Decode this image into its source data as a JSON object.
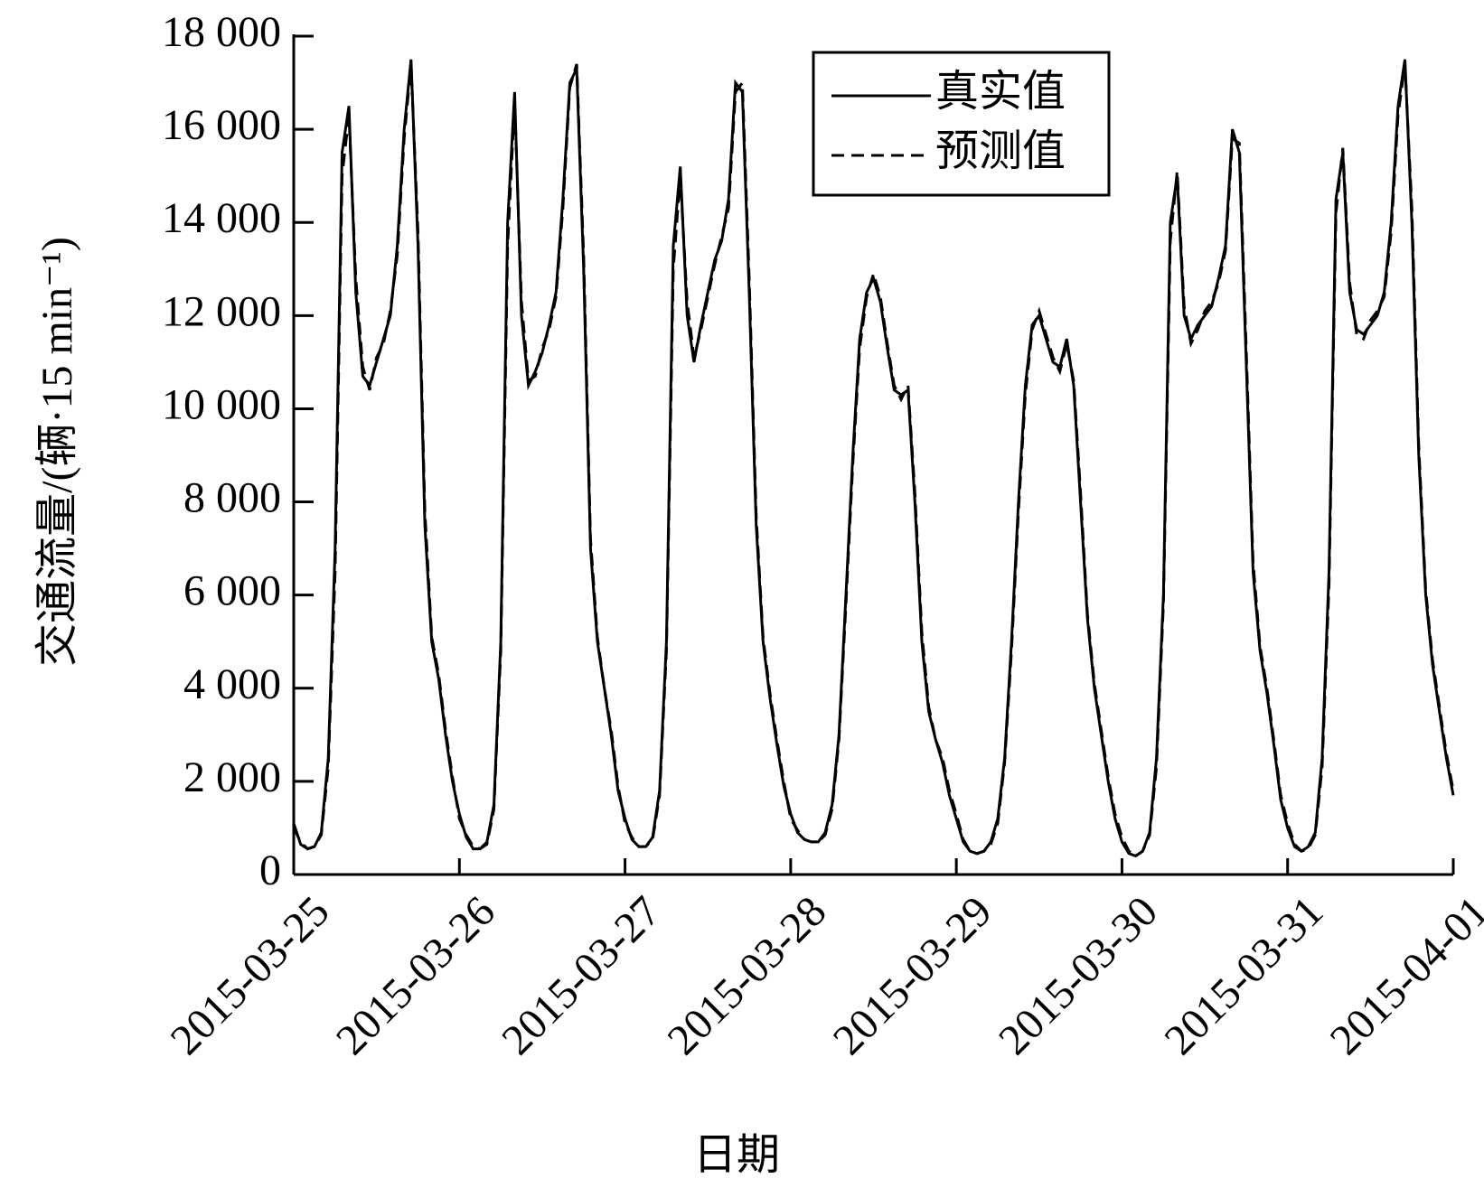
{
  "chart_data": {
    "type": "line",
    "xlabel": "日期",
    "ylabel": "交通流量/(辆·15 min⁻¹)",
    "categories": [
      "2015-03-25",
      null,
      null,
      null,
      null,
      null,
      null,
      null,
      null,
      null,
      null,
      null,
      null,
      null,
      null,
      null,
      null,
      null,
      null,
      null,
      null,
      null,
      null,
      null,
      "2015-03-26",
      null,
      null,
      null,
      null,
      null,
      null,
      null,
      null,
      null,
      null,
      null,
      null,
      null,
      null,
      null,
      null,
      null,
      null,
      null,
      null,
      null,
      null,
      null,
      "2015-03-27",
      null,
      null,
      null,
      null,
      null,
      null,
      null,
      null,
      null,
      null,
      null,
      null,
      null,
      null,
      null,
      null,
      null,
      null,
      null,
      null,
      null,
      null,
      null,
      "2015-03-28",
      null,
      null,
      null,
      null,
      null,
      null,
      null,
      null,
      null,
      null,
      null,
      null,
      null,
      null,
      null,
      null,
      null,
      null,
      null,
      null,
      null,
      null,
      null,
      "2015-03-29",
      null,
      null,
      null,
      null,
      null,
      null,
      null,
      null,
      null,
      null,
      null,
      null,
      null,
      null,
      null,
      null,
      null,
      null,
      null,
      null,
      null,
      null,
      null,
      "2015-03-30",
      null,
      null,
      null,
      null,
      null,
      null,
      null,
      null,
      null,
      null,
      null,
      null,
      null,
      null,
      null,
      null,
      null,
      null,
      null,
      null,
      null,
      null,
      null,
      "2015-03-31",
      null,
      null,
      null,
      null,
      null,
      null,
      null,
      null,
      null,
      null,
      null,
      null,
      null,
      null,
      null,
      null,
      null,
      null,
      null,
      null,
      null,
      null,
      null,
      "2015-04-01"
    ],
    "series": [
      {
        "name": "真实值",
        "color": "#000000",
        "linestyle": "solid",
        "values": [
          1100,
          650,
          550,
          600,
          900,
          2500,
          7000,
          15500,
          16500,
          12500,
          10700,
          10500,
          11000,
          11500,
          12000,
          13500,
          16000,
          17500,
          13500,
          7500,
          5000,
          4200,
          3000,
          2000,
          1300,
          800,
          550,
          550,
          700,
          1500,
          5000,
          14000,
          16800,
          12000,
          10500,
          10800,
          11200,
          11800,
          12500,
          14500,
          17000,
          17300,
          13000,
          7000,
          5000,
          4000,
          3000,
          1800,
          1200,
          750,
          600,
          600,
          800,
          1800,
          5000,
          13500,
          15200,
          12000,
          11000,
          11800,
          12500,
          13200,
          13600,
          14500,
          17000,
          16800,
          12500,
          7500,
          5000,
          3800,
          2800,
          1900,
          1300,
          900,
          750,
          700,
          700,
          900,
          1500,
          3000,
          6000,
          9000,
          11500,
          12500,
          12800,
          12300,
          11300,
          10400,
          10300,
          10400,
          8000,
          5000,
          3500,
          2900,
          2400,
          1700,
          1200,
          700,
          500,
          450,
          500,
          700,
          1200,
          2500,
          5000,
          8000,
          10500,
          11800,
          12000,
          11500,
          11000,
          10900,
          11500,
          10500,
          8000,
          5500,
          4000,
          3000,
          2000,
          1200,
          700,
          450,
          400,
          500,
          900,
          2500,
          6000,
          14000,
          15000,
          12000,
          11500,
          11800,
          12000,
          12200,
          12800,
          13500,
          16000,
          15500,
          11000,
          6500,
          4800,
          3900,
          2800,
          1600,
          1000,
          600,
          500,
          600,
          900,
          2500,
          6500,
          14500,
          15500,
          12500,
          11700,
          11600,
          11800,
          12000,
          12500,
          14000,
          16500,
          17500,
          14000,
          9000,
          6000,
          4500,
          3500,
          2500,
          1700
        ]
      },
      {
        "name": "预测值",
        "color": "#000000",
        "linestyle": "dashed",
        "values": [
          1000,
          700,
          550,
          600,
          850,
          2300,
          6500,
          15000,
          16300,
          12800,
          10900,
          10400,
          11100,
          11400,
          12100,
          13300,
          15800,
          17400,
          13800,
          7800,
          5100,
          4300,
          3100,
          2100,
          1200,
          850,
          600,
          550,
          650,
          1400,
          4800,
          13500,
          16600,
          12300,
          10600,
          10700,
          11300,
          11700,
          12400,
          14300,
          16900,
          17400,
          13300,
          7200,
          5100,
          4000,
          3100,
          1900,
          1100,
          800,
          600,
          600,
          750,
          1700,
          4800,
          13000,
          15000,
          12300,
          11100,
          11700,
          12400,
          13100,
          13700,
          14300,
          16800,
          17000,
          12800,
          7700,
          5100,
          3900,
          2900,
          2000,
          1200,
          950,
          750,
          700,
          700,
          850,
          1400,
          2900,
          5800,
          8800,
          11300,
          12400,
          12900,
          12400,
          11400,
          10500,
          10200,
          10500,
          8200,
          5200,
          3600,
          2900,
          2500,
          1800,
          1300,
          750,
          500,
          450,
          500,
          650,
          1100,
          2400,
          4800,
          7800,
          10300,
          11700,
          12100,
          11600,
          11100,
          10800,
          11400,
          10600,
          8200,
          5600,
          4100,
          3100,
          2100,
          1300,
          800,
          500,
          400,
          500,
          850,
          2300,
          5800,
          13600,
          15100,
          12200,
          11400,
          11700,
          12100,
          12300,
          12700,
          13400,
          15800,
          15700,
          11300,
          6700,
          4900,
          4000,
          2900,
          1700,
          1100,
          650,
          500,
          550,
          850,
          2300,
          6200,
          14200,
          15600,
          12700,
          11600,
          11500,
          11900,
          12100,
          12400,
          13800,
          16300,
          17400,
          14300,
          9200,
          6100,
          4600,
          3600,
          2600,
          1800
        ]
      }
    ],
    "ylim": [
      0,
      18000
    ],
    "yticks": [
      0,
      {
        "value": 2000,
        "label": "2 000"
      },
      {
        "value": 4000,
        "label": "4 000"
      },
      {
        "value": 6000,
        "label": "6 000"
      },
      {
        "value": 8000,
        "label": "8 000"
      },
      {
        "value": 10000,
        "label": "10 000"
      },
      {
        "value": 12000,
        "label": "12 000"
      },
      {
        "value": 14000,
        "label": "14 000"
      },
      {
        "value": 16000,
        "label": "16 000"
      },
      {
        "value": 18000,
        "label": "18 000"
      }
    ],
    "legend": "upper right",
    "grid": false
  }
}
